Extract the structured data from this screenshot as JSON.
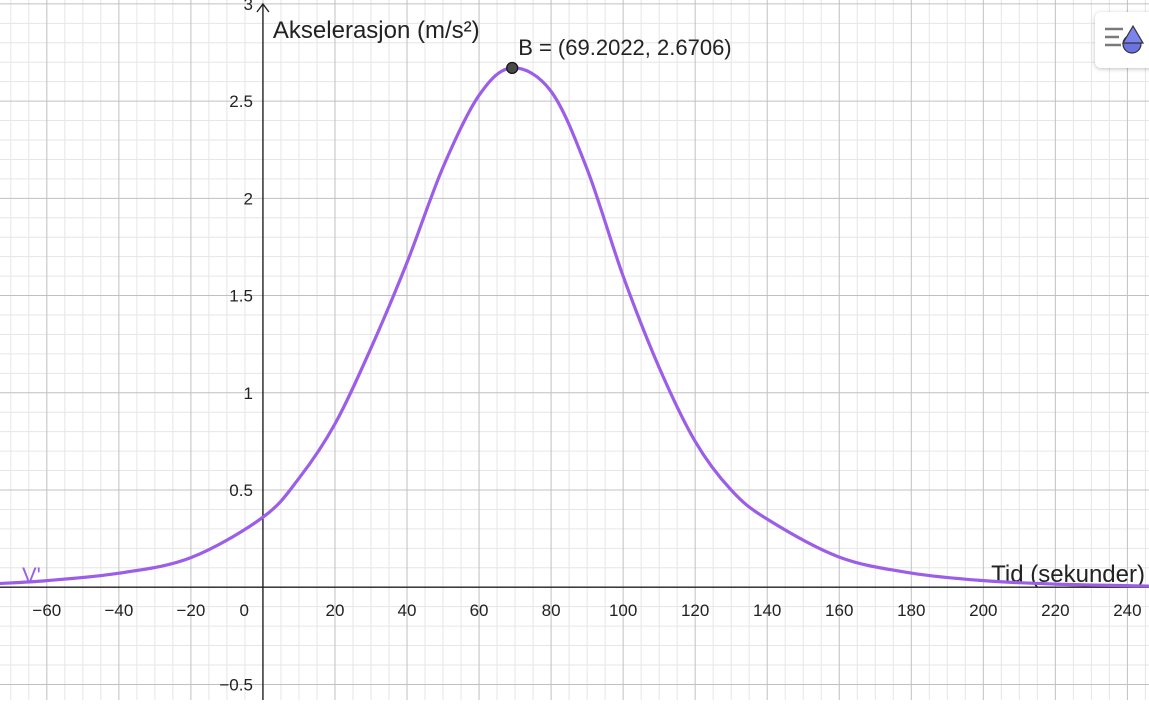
{
  "chart_data": {
    "type": "line",
    "title": "",
    "xlabel": "Tid (sekunder)",
    "ylabel": "Akselerasjon (m/s²)",
    "xlim": [
      -73,
      246
    ],
    "ylim": [
      -0.58,
      3.02
    ],
    "x_ticks": [
      {
        "value": -60,
        "label": "−60"
      },
      {
        "value": -40,
        "label": "−40"
      },
      {
        "value": -20,
        "label": "−20"
      },
      {
        "value": 20,
        "label": "20"
      },
      {
        "value": 40,
        "label": "40"
      },
      {
        "value": 60,
        "label": "60"
      },
      {
        "value": 80,
        "label": "80"
      },
      {
        "value": 100,
        "label": "100"
      },
      {
        "value": 120,
        "label": "120"
      },
      {
        "value": 140,
        "label": "140"
      },
      {
        "value": 160,
        "label": "160"
      },
      {
        "value": 180,
        "label": "180"
      },
      {
        "value": 200,
        "label": "200"
      },
      {
        "value": 220,
        "label": "220"
      },
      {
        "value": 240,
        "label": "240"
      }
    ],
    "y_ticks": [
      {
        "value": -0.5,
        "label": "−0.5"
      },
      {
        "value": 0.5,
        "label": "0.5"
      },
      {
        "value": 1,
        "label": "1"
      },
      {
        "value": 1.5,
        "label": "1.5"
      },
      {
        "value": 2,
        "label": "2"
      },
      {
        "value": 2.5,
        "label": "2.5"
      },
      {
        "value": 3,
        "label": "3"
      }
    ],
    "origin_label": "0",
    "grid": true,
    "series": [
      {
        "name": "V'",
        "color": "#9c5ee8",
        "x": [
          -73,
          -60,
          -40,
          -20,
          0,
          10,
          20,
          30,
          40,
          50,
          60,
          69.2022,
          80,
          90,
          100,
          110,
          120,
          130,
          140,
          160,
          180,
          200,
          220,
          246
        ],
        "y": [
          0.019,
          0.034,
          0.072,
          0.152,
          0.36,
          0.56,
          0.84,
          1.23,
          1.67,
          2.16,
          2.53,
          2.6706,
          2.55,
          2.15,
          1.6,
          1.13,
          0.75,
          0.5,
          0.35,
          0.155,
          0.073,
          0.034,
          0.016,
          0.006
        ]
      }
    ],
    "points": [
      {
        "name": "B",
        "x": 69.2022,
        "y": 2.6706,
        "label": "B = (69.2022, 2.6706)",
        "color": "#4a4a4a"
      }
    ],
    "colors": {
      "grid_major": "#c0c0c0",
      "grid_minor": "#e6e6e6",
      "axis": "#222222",
      "style_icon_blue": "#6a73e0"
    }
  },
  "toolbar": {
    "style_bar_icon": "style-bar-toggle-icon"
  }
}
